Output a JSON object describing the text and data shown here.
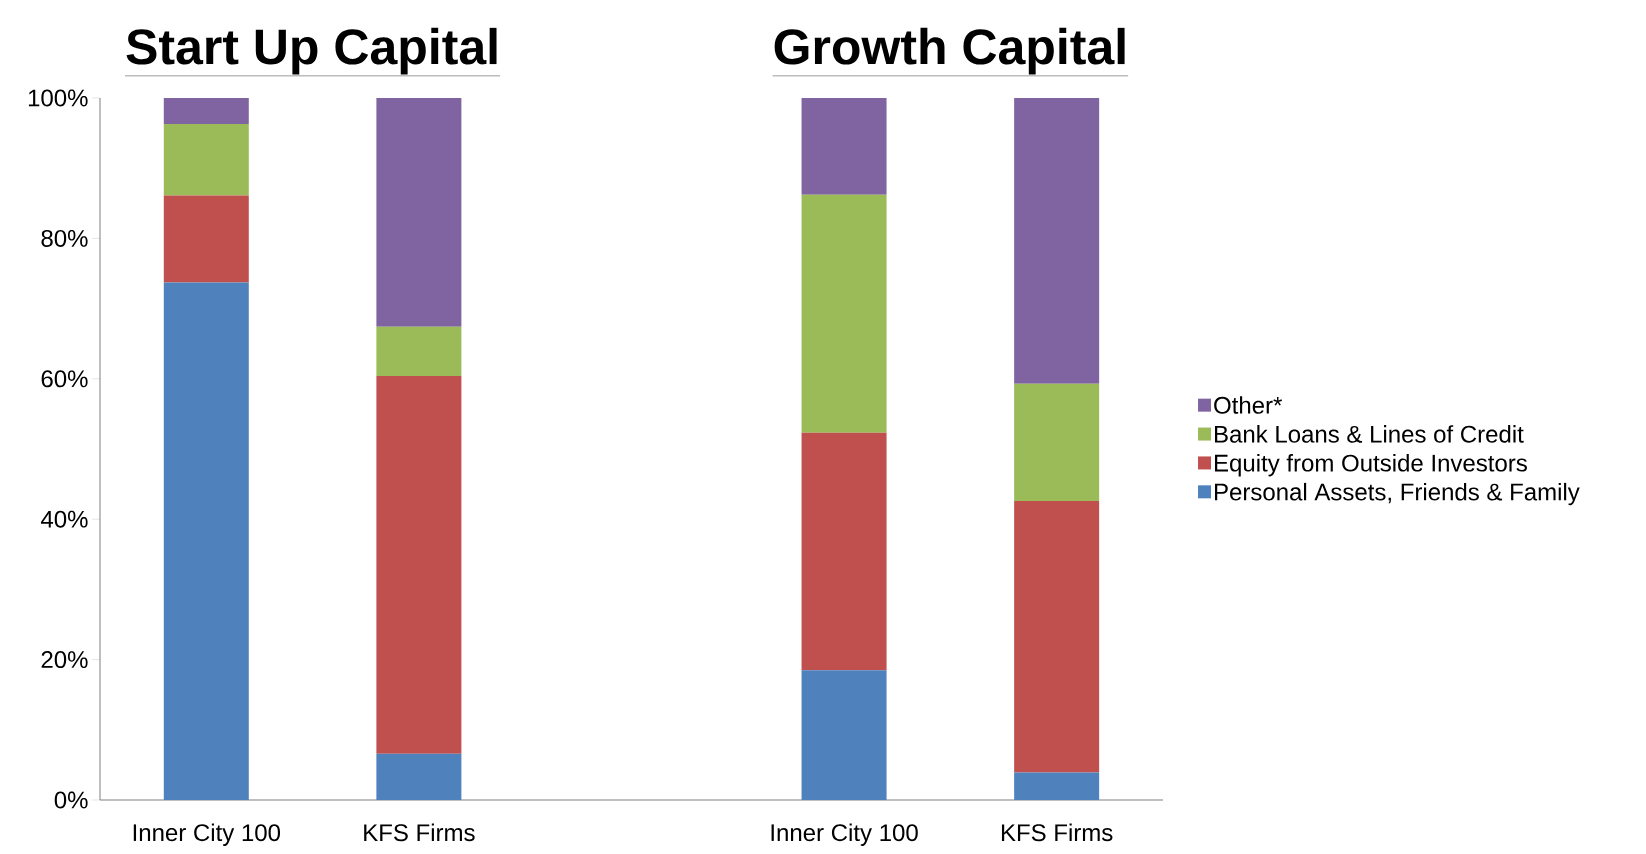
{
  "chart_data": {
    "type": "bar",
    "stacked": true,
    "categories": [
      "Inner City 100",
      "KFS Firms",
      null,
      "Inner City 100",
      "KFS Firms"
    ],
    "series": [
      {
        "name": "Personal Assets, Friends & Family",
        "color": "#4f81bd",
        "values": [
          73.7,
          6.6,
          null,
          18.5,
          3.9
        ]
      },
      {
        "name": "Equity from Outside Investors",
        "color": "#c0504d",
        "values": [
          12.4,
          53.8,
          null,
          33.8,
          38.7
        ]
      },
      {
        "name": "Bank Loans & Lines of Credit",
        "color": "#9bbb59",
        "values": [
          10.2,
          7.0,
          null,
          33.9,
          16.7
        ]
      },
      {
        "name": "Other*",
        "color": "#8064a2",
        "values": [
          3.7,
          32.6,
          null,
          13.8,
          40.7
        ]
      }
    ],
    "ylim": [
      0,
      100
    ],
    "yticks": [
      {
        "value": 0,
        "label": "0%"
      },
      {
        "value": 20,
        "label": "20%"
      },
      {
        "value": 40,
        "label": "40%"
      },
      {
        "value": 60,
        "label": "60%"
      },
      {
        "value": 80,
        "label": "80%"
      },
      {
        "value": 100,
        "label": "100%"
      }
    ],
    "legend": "right",
    "annotations": [
      "Start Up Capital",
      "Growth Capital"
    ]
  }
}
